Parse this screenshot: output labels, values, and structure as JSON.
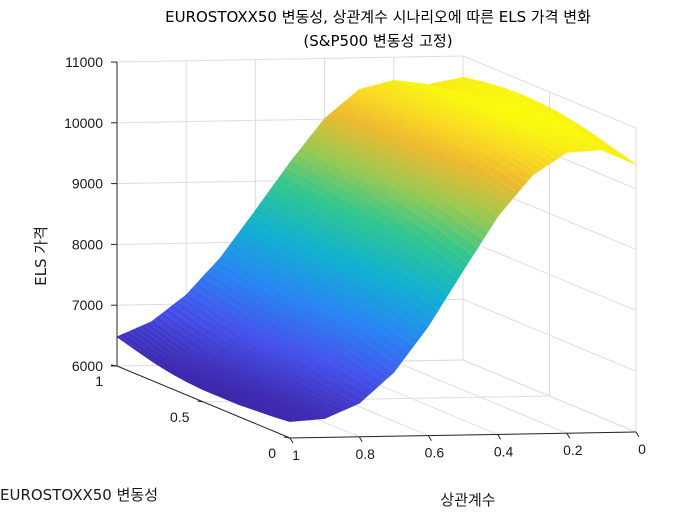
{
  "chart_data": {
    "type": "surface",
    "title_line1": "EUROSTOXX50 변동성, 상관계수 시나리오에 따른 ELS 가격 변화",
    "title_line2": "(S&P500 변동성 고정)",
    "xlabel": "상관계수",
    "ylabel": "EUROSTOXX50 변동성",
    "zlabel": "ELS 가격",
    "xlim": [
      0,
      1
    ],
    "ylim": [
      0,
      1
    ],
    "zlim": [
      6000,
      11000
    ],
    "x_ticks": [
      "0",
      "0.2",
      "0.4",
      "0.6",
      "0.8",
      "1"
    ],
    "x_tick_values": [
      0,
      0.2,
      0.4,
      0.6,
      0.8,
      1
    ],
    "y_ticks": [
      "0",
      "0.5",
      "1"
    ],
    "y_tick_values": [
      0,
      0.5,
      1
    ],
    "z_ticks": [
      "6000",
      "7000",
      "8000",
      "9000",
      "10000",
      "11000"
    ],
    "z_tick_values": [
      6000,
      7000,
      8000,
      9000,
      10000,
      11000
    ],
    "colormap": "parula",
    "grid": true,
    "x": [
      1,
      0.9,
      0.8,
      0.7,
      0.6,
      0.5,
      0.4,
      0.3,
      0.2,
      0.1,
      0
    ],
    "y": [
      0,
      0.1,
      0.2,
      0.3,
      0.4,
      0.5,
      0.6,
      0.7,
      0.8,
      0.9,
      1
    ],
    "z_at_x": [
      [
        6270,
        6240,
        6220,
        6200,
        6200,
        6200,
        6220,
        6260,
        6320,
        6400,
        6480
      ],
      [
        6310,
        6300,
        6300,
        6310,
        6340,
        6380,
        6420,
        6480,
        6550,
        6630,
        6720
      ],
      [
        6550,
        6580,
        6620,
        6680,
        6740,
        6800,
        6870,
        6940,
        7010,
        7080,
        7150
      ],
      [
        7050,
        7130,
        7210,
        7300,
        7380,
        7450,
        7520,
        7590,
        7650,
        7710,
        7760
      ],
      [
        7800,
        7900,
        8000,
        8100,
        8180,
        8260,
        8320,
        8380,
        8430,
        8480,
        8520
      ],
      [
        8700,
        8800,
        8900,
        8990,
        9060,
        9120,
        9170,
        9210,
        9240,
        9270,
        9300
      ],
      [
        9580,
        9680,
        9760,
        9830,
        9880,
        9920,
        9950,
        9970,
        9990,
        10000,
        10010
      ],
      [
        10250,
        10330,
        10400,
        10450,
        10480,
        10500,
        10510,
        10510,
        10500,
        10490,
        10480
      ],
      [
        10620,
        10680,
        10730,
        10760,
        10770,
        10760,
        10740,
        10710,
        10680,
        10650,
        10620
      ],
      [
        10650,
        10720,
        10770,
        10800,
        10800,
        10780,
        10740,
        10690,
        10640,
        10590,
        10540
      ],
      [
        10400,
        10480,
        10560,
        10640,
        10700,
        10740,
        10760,
        10760,
        10740,
        10700,
        10650
      ]
    ]
  }
}
